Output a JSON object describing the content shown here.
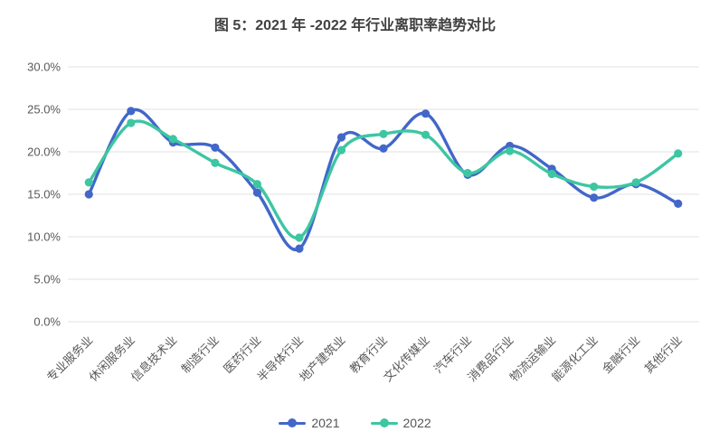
{
  "title": "图 5：2021 年 -2022 年行业离职率趋势对比",
  "chart_data": {
    "type": "line",
    "smooth": true,
    "grid": true,
    "legend_position": "bottom",
    "title": "图 5：2021 年 -2022 年行业离职率趋势对比",
    "xlabel": "",
    "ylabel": "",
    "ylim": [
      0,
      30
    ],
    "y_tick_labels": [
      "30.0%",
      "25.0%",
      "20.0%",
      "15.0%",
      "10.0%",
      "5.0%",
      "0.0%"
    ],
    "categories": [
      "专业服务业",
      "休闲服务业",
      "信息技术业",
      "制造行业",
      "医药行业",
      "半导体行业",
      "地产建筑业",
      "教育行业",
      "文化传媒业",
      "汽车行业",
      "消费品行业",
      "物流运输业",
      "能源化工业",
      "金融行业",
      "其他行业"
    ],
    "series": [
      {
        "name": "2021",
        "color": "#4267c9",
        "values": [
          15.0,
          24.8,
          21.1,
          20.5,
          15.2,
          8.6,
          21.7,
          20.4,
          24.5,
          17.3,
          20.7,
          18.0,
          14.6,
          16.2,
          13.9
        ]
      },
      {
        "name": "2022",
        "color": "#3dc6a2",
        "values": [
          16.4,
          23.4,
          21.5,
          18.7,
          16.2,
          9.9,
          20.2,
          22.1,
          22.0,
          17.5,
          20.1,
          17.4,
          15.9,
          16.4,
          19.8
        ]
      }
    ]
  },
  "colors": {
    "grid_line": "#e2e2e2",
    "axis_text": "#595959",
    "title_text": "#404040",
    "background": "#ffffff"
  }
}
